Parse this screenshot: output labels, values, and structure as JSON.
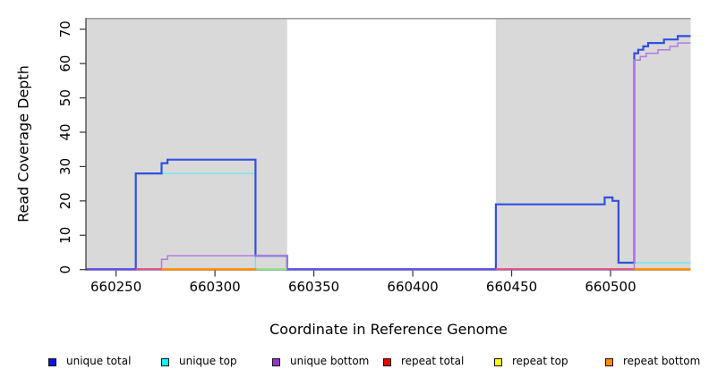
{
  "chart_data": {
    "type": "line",
    "step": true,
    "title": "",
    "xlabel": "Coordinate in Reference Genome",
    "ylabel": "Read Coverage Depth",
    "x_ticks": [
      660250,
      660300,
      660350,
      660400,
      660450,
      660500
    ],
    "y_ticks": [
      0,
      10,
      20,
      30,
      40,
      50,
      60,
      70
    ],
    "x_range": [
      660235,
      660540.5
    ],
    "y_range": [
      0,
      73
    ],
    "grid": false,
    "background_regions": [
      {
        "name": "repeat-region-left",
        "x0": 660235,
        "x1": 660336.5,
        "color": "#d9d9d9"
      },
      {
        "name": "repeat-region-right",
        "x0": 660442,
        "x1": 660540.5,
        "color": "#d9d9d9"
      }
    ],
    "series": [
      {
        "name": "repeat total",
        "color": "#E0517E",
        "legend_color": "#EE0000",
        "width": 1.4,
        "segments": [
          [
            660235,
            660540.5,
            0
          ]
        ]
      },
      {
        "name": "repeat top",
        "color": "#F5F060",
        "legend_color": "#FFFF00",
        "width": 1.2,
        "segments": [
          [
            660235,
            660540.5,
            0
          ]
        ]
      },
      {
        "name": "repeat bottom",
        "color": "#FF9000",
        "legend_color": "#FF8C00",
        "width": 1.6,
        "segments": [
          [
            660235,
            660540.5,
            0
          ]
        ]
      },
      {
        "name": "unique top",
        "color": "#66E8F0",
        "legend_color": "#00FFFF",
        "width": 1.3,
        "segments": [
          [
            660235,
            660260,
            0
          ],
          [
            660260,
            660320.5,
            28
          ],
          [
            660320.5,
            660336.5,
            0
          ],
          [
            660512,
            660540.5,
            2
          ]
        ]
      },
      {
        "name": "unique total",
        "color": "#3050E0",
        "legend_color": "#1010EE",
        "width": 2.2,
        "segments": [
          [
            660235,
            660260,
            0
          ],
          [
            660260,
            660273,
            28
          ],
          [
            660273,
            660276,
            31
          ],
          [
            660276,
            660320.5,
            32
          ],
          [
            660320.5,
            660336.5,
            4
          ],
          [
            660336.5,
            660442,
            0
          ],
          [
            660442,
            660497,
            19
          ],
          [
            660497,
            660501,
            21
          ],
          [
            660501,
            660504,
            20
          ],
          [
            660504,
            660512,
            2
          ],
          [
            660512,
            660514,
            63
          ],
          [
            660514,
            660516.5,
            64
          ],
          [
            660516.5,
            660519,
            65
          ],
          [
            660519,
            660527,
            66
          ],
          [
            660527,
            660534,
            67
          ],
          [
            660534,
            660540.5,
            68
          ]
        ]
      },
      {
        "name": "unique bottom",
        "color": "#B07CE0",
        "legend_color": "#9932CC",
        "width": 1.5,
        "segments": [
          [
            660235,
            660273,
            0
          ],
          [
            660273,
            660276,
            3
          ],
          [
            660276,
            660336.5,
            4
          ],
          [
            660336.5,
            660512,
            0
          ],
          [
            660512,
            660515,
            61
          ],
          [
            660515,
            660518,
            62
          ],
          [
            660518,
            660524,
            63
          ],
          [
            660524,
            660530,
            64
          ],
          [
            660530,
            660534,
            65
          ],
          [
            660534,
            660540.5,
            66
          ]
        ]
      }
    ],
    "zero_line_visible_colors": [
      [
        660235,
        660260,
        "#5A50DD"
      ],
      [
        660260,
        660273,
        "#E0517E"
      ],
      [
        660273,
        660321,
        "#FF9000"
      ],
      [
        660321,
        660336.5,
        "#90E080"
      ],
      [
        660336.5,
        660442,
        "#5A50DD"
      ],
      [
        660442,
        660512,
        "#E0517E"
      ],
      [
        660512,
        660540.5,
        "#FF9000"
      ]
    ],
    "legend": {
      "position": "bottom",
      "items": [
        {
          "label": "unique total",
          "color": "#1010EE"
        },
        {
          "label": "unique top",
          "color": "#00FFFF"
        },
        {
          "label": "unique bottom",
          "color": "#9932CC"
        },
        {
          "label": "repeat total",
          "color": "#EE0000"
        },
        {
          "label": "repeat top",
          "color": "#FFFF00"
        },
        {
          "label": "repeat bottom",
          "color": "#FF8C00"
        }
      ]
    },
    "colors": {
      "plot_background": "#ffffff",
      "repeat_region_fill": "#d9d9d9",
      "plot_top_border": "#9a9a9a",
      "axis": "#333333"
    }
  }
}
